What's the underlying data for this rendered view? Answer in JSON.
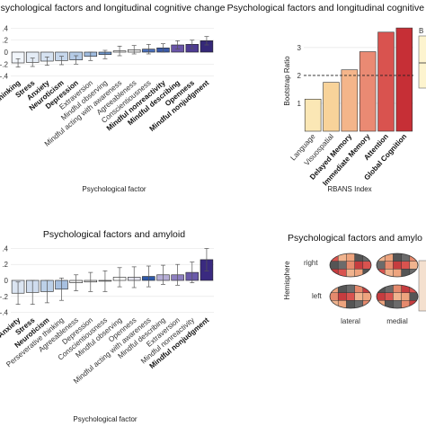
{
  "chart_data": [
    {
      "type": "bar",
      "title": "Psychological factors and longitudinal cognitive change",
      "xlabel": "Psychological factor",
      "ylabel": "",
      "ylim": [
        -0.45,
        0.45
      ],
      "yticks": [
        "-.4",
        "-.2",
        "0",
        ".2",
        ".4"
      ],
      "categories": [
        {
          "label": "Perseverative thinking",
          "bold": true,
          "value": -0.18,
          "err": 0.07,
          "color": "#f2f6fb"
        },
        {
          "label": "Stress",
          "bold": true,
          "value": -0.17,
          "err": 0.07,
          "color": "#e4ecf6"
        },
        {
          "label": "Anxiety",
          "bold": true,
          "value": -0.15,
          "err": 0.07,
          "color": "#d6e2f1"
        },
        {
          "label": "Neuroticism",
          "bold": true,
          "value": -0.14,
          "err": 0.07,
          "color": "#c6d7ec"
        },
        {
          "label": "Depression",
          "bold": true,
          "value": -0.13,
          "err": 0.07,
          "color": "#b5cbe6"
        },
        {
          "label": "Extraversion",
          "bold": false,
          "value": -0.07,
          "err": 0.07,
          "color": "#9fbbde"
        },
        {
          "label": "Mindful observing",
          "bold": false,
          "value": -0.04,
          "err": 0.07,
          "color": "#6e97cc"
        },
        {
          "label": "Mindful acting with awareness",
          "bold": false,
          "value": 0.02,
          "err": 0.08,
          "color": "#ffffff"
        },
        {
          "label": "Agreeableness",
          "bold": false,
          "value": 0.04,
          "err": 0.07,
          "color": "#eeeeee"
        },
        {
          "label": "Conscientiousness",
          "bold": false,
          "value": 0.05,
          "err": 0.08,
          "color": "#4c6fb7"
        },
        {
          "label": "Mindful nonreactivity",
          "bold": true,
          "value": 0.07,
          "err": 0.07,
          "color": "#3b5aa8"
        },
        {
          "label": "Mindful describing",
          "bold": true,
          "value": 0.12,
          "err": 0.07,
          "color": "#6a55a8"
        },
        {
          "label": "Openness",
          "bold": true,
          "value": 0.13,
          "err": 0.07,
          "color": "#4e3b93"
        },
        {
          "label": "Mindful nonjudgment",
          "bold": true,
          "value": 0.19,
          "err": 0.07,
          "color": "#352878"
        }
      ]
    },
    {
      "type": "bar",
      "title": "Psychological factors and longitudinal cognitive change",
      "xlabel": "RBANS Index",
      "ylabel": "Bootstrap Ratio",
      "ylim": [
        0,
        3.8
      ],
      "yticks": [
        "1",
        "2",
        "3"
      ],
      "threshold": 2,
      "categories": [
        {
          "label": "Language",
          "bold": false,
          "value": 1.15,
          "color": "#fbe7b5"
        },
        {
          "label": "Visuospatial",
          "bold": false,
          "value": 1.75,
          "color": "#f8d39a"
        },
        {
          "label": "Delayed Memory",
          "bold": true,
          "value": 2.2,
          "color": "#f4b58a"
        },
        {
          "label": "Immediate Memory",
          "bold": true,
          "value": 2.85,
          "color": "#ea8a73"
        },
        {
          "label": "Attention",
          "bold": true,
          "value": 3.55,
          "color": "#d9534f"
        },
        {
          "label": "Global Cognition",
          "bold": true,
          "value": 3.7,
          "color": "#c62f36"
        }
      ],
      "legend_stub": "B"
    },
    {
      "type": "bar",
      "title": "Psychological factors and amyloid",
      "xlabel": "Psychological factor",
      "ylabel": "",
      "ylim": [
        -0.45,
        0.45
      ],
      "yticks": [
        "-.4",
        "-.2",
        "0",
        ".2",
        ".4"
      ],
      "categories": [
        {
          "label": "Anxiety",
          "bold": true,
          "value": -0.16,
          "err": 0.14,
          "color": "#dbe5f2"
        },
        {
          "label": "Stress",
          "bold": true,
          "value": -0.15,
          "err": 0.15,
          "color": "#cfdcee"
        },
        {
          "label": "Neuroticism",
          "bold": true,
          "value": -0.14,
          "err": 0.14,
          "color": "#bcd0e8"
        },
        {
          "label": "Perseverative thinking",
          "bold": false,
          "value": -0.11,
          "err": 0.14,
          "color": "#a7c0e0"
        },
        {
          "label": "Agreeableness",
          "bold": false,
          "value": -0.03,
          "err": 0.1,
          "color": "#eeeeee"
        },
        {
          "label": "Depression",
          "bold": false,
          "value": -0.02,
          "err": 0.12,
          "color": "#e8e8e8"
        },
        {
          "label": "Conscientiousness",
          "bold": false,
          "value": -0.01,
          "err": 0.13,
          "color": "#e6e6e6"
        },
        {
          "label": "Mindful observing",
          "bold": false,
          "value": 0.04,
          "err": 0.12,
          "color": "#ffffff"
        },
        {
          "label": "Openness",
          "bold": false,
          "value": 0.04,
          "err": 0.13,
          "color": "#e4e4ef"
        },
        {
          "label": "Mindful acting with awareness",
          "bold": false,
          "value": 0.05,
          "err": 0.13,
          "color": "#2f59a8"
        },
        {
          "label": "Mindful describing",
          "bold": false,
          "value": 0.07,
          "err": 0.12,
          "color": "#b6aed6"
        },
        {
          "label": "Extraversion",
          "bold": false,
          "value": 0.07,
          "err": 0.13,
          "color": "#8e80c0"
        },
        {
          "label": "Mindful nonreactivity",
          "bold": false,
          "value": 0.1,
          "err": 0.13,
          "color": "#6a5aaa"
        },
        {
          "label": "Mindful nonjudgment",
          "bold": true,
          "value": 0.26,
          "err": 0.14,
          "color": "#3a2a80"
        }
      ]
    },
    {
      "type": "diagram",
      "title": "Psychological factors and amylo",
      "ylabel": "Hemisphere",
      "rows": [
        "right",
        "left"
      ],
      "columns": [
        "lateral",
        "medial"
      ]
    }
  ]
}
